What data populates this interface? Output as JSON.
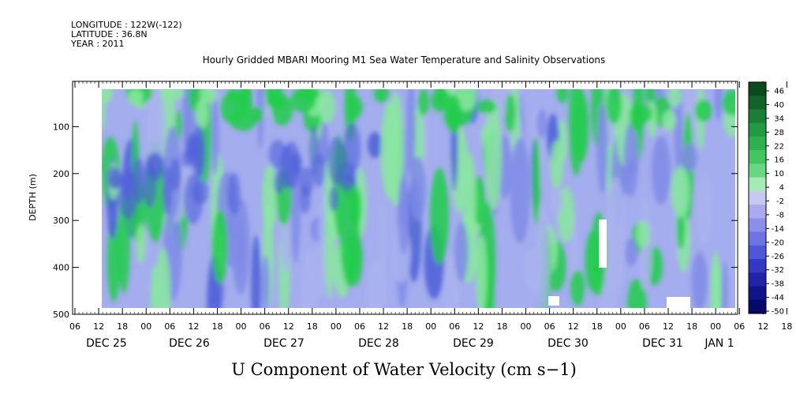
{
  "header": {
    "longitude": "LONGITUDE : 122W(-122)",
    "latitude": "LATITUDE : 36.8N",
    "year": "YEAR : 2011"
  },
  "chart_data": {
    "type": "heatmap",
    "title": "Hourly Gridded MBARI Mooring M1 Sea Water Temperature and Salinity Observations",
    "xlabel": "U Component of Water Velocity (cm s−1)",
    "ylabel": "DEPTH (m)",
    "ylim": [
      500,
      0
    ],
    "y_ticks": [
      100,
      200,
      300,
      400,
      500
    ],
    "x_hour_ticks": [
      "06",
      "12",
      "18",
      "00",
      "06",
      "12",
      "18",
      "00",
      "06",
      "12",
      "18",
      "00",
      "06",
      "12",
      "18",
      "00",
      "06",
      "12",
      "18",
      "00",
      "06",
      "12",
      "18",
      "00",
      "06",
      "12",
      "18",
      "00",
      "06",
      "12",
      "18",
      "00"
    ],
    "x_date_labels": [
      "DEC 25",
      "DEC 26",
      "DEC 27",
      "DEC 28",
      "DEC 29",
      "DEC 30",
      "DEC 31",
      "JAN 1"
    ],
    "colorbar_levels": [
      "46",
      "40",
      "34",
      "28",
      "22",
      "16",
      "10",
      "4",
      "-2",
      "-8",
      "-14",
      "-20",
      "-26",
      "-32",
      "-38",
      "-44",
      "-50"
    ],
    "colorbar_colors": [
      "#0b4a1e",
      "#13622a",
      "#1c7e36",
      "#229a42",
      "#2db04f",
      "#45c462",
      "#6bd682",
      "#a8eab5",
      "#c7c9f0",
      "#a9abee",
      "#8b8fe9",
      "#6d74e2",
      "#4f57d6",
      "#3539c2",
      "#2024a6",
      "#111488",
      "#07096a"
    ],
    "colors": {
      "green_strong": "#22cc4a",
      "green_light": "#8ae8a0",
      "blue_light": "#aab3ee",
      "blue_mid": "#7f8be6",
      "blue_dark": "#4e5fd8"
    }
  }
}
